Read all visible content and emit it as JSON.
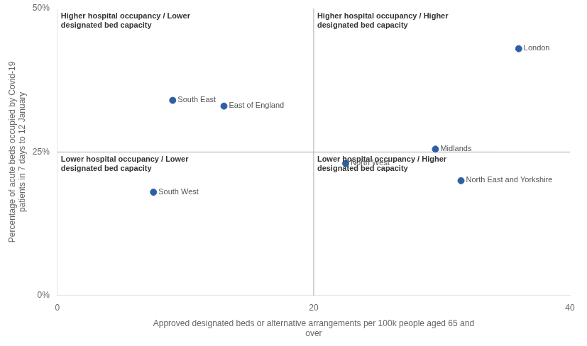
{
  "chart_data": {
    "type": "scatter",
    "x": [
      36.0,
      9.0,
      13.0,
      7.5,
      29.5,
      22.5,
      31.5
    ],
    "values": [
      43.0,
      34.0,
      33.0,
      18.0,
      25.5,
      23.0,
      20.0
    ],
    "point_labels": [
      "London",
      "South East",
      "East of England",
      "South West",
      "Midlands",
      "North West",
      "North East and Yorkshire"
    ],
    "color": "#2e5fa3",
    "xlabel": "Approved designated beds or alternative arrangements per 100k people aged 65 and\nover",
    "ylabel": "Percentage of acute beds occupied by Covid-19\npatients in 7 days to 12 January",
    "xlim": [
      0,
      40
    ],
    "ylim": [
      0,
      50
    ],
    "xticks": [
      0,
      20,
      40
    ],
    "yticks": [
      {
        "value": 0,
        "label": "0%"
      },
      {
        "value": 25,
        "label": "25%"
      },
      {
        "value": 50,
        "label": "50%"
      }
    ],
    "hline": 25,
    "vline": 20,
    "quadrant_labels": [
      "Higher hospital occupancy / Lower\ndesignated bed capacity",
      "Higher hospital occupancy / Higher\ndesignated bed capacity",
      "Lower hospital occupancy / Lower\ndesignated bed capacity",
      "Lower hospital occupancy / Higher\ndesignated bed capacity"
    ],
    "grid": false
  }
}
